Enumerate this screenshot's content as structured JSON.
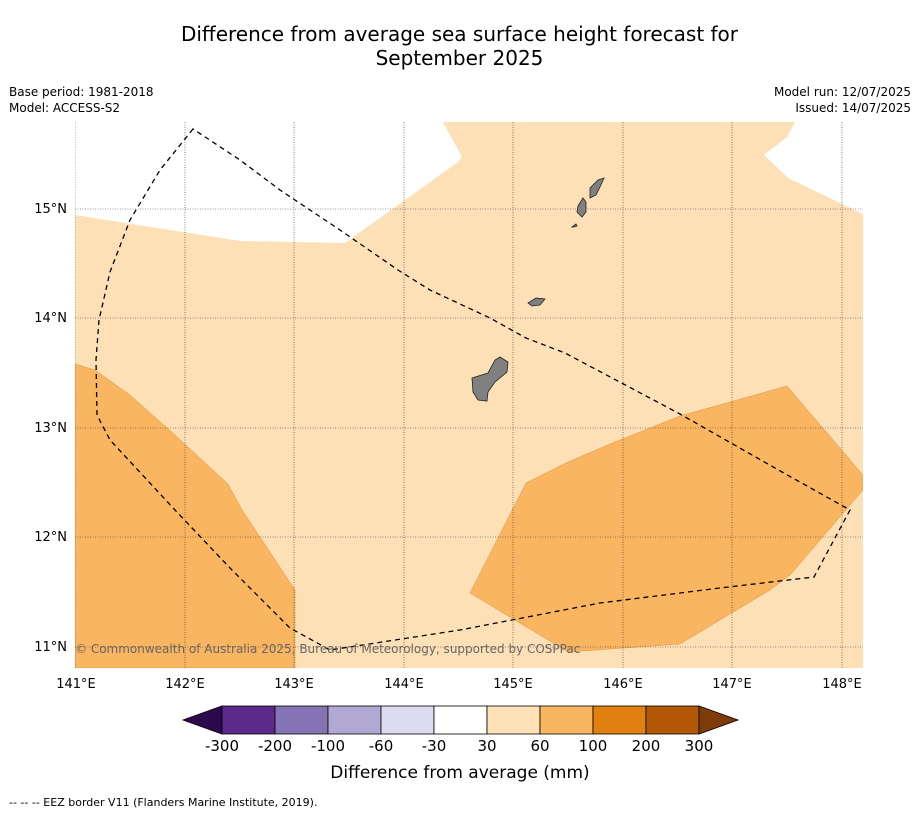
{
  "title_line1": "Difference from average sea surface height forecast for",
  "title_line2": "September 2025",
  "base_period": "Base period: 1981-2018",
  "model": "Model: ACCESS-S2",
  "model_run": "Model run: 12/07/2025",
  "issued": "Issued: 14/07/2025",
  "copyright": "© Commonwealth of Australia 2025, Bureau of Meteorology, supported by COSPPac",
  "footer": "--  --  -- EEZ border V11 (Flanders Marine Institute, 2019).",
  "lon_ticks": [
    "141°E",
    "142°E",
    "143°E",
    "144°E",
    "145°E",
    "146°E",
    "147°E",
    "148°E"
  ],
  "lat_ticks": [
    "15°N",
    "14°N",
    "13°N",
    "12°N",
    "11°N"
  ],
  "colorbar": {
    "title": "Difference from average (mm)",
    "labels": [
      "-300",
      "-200",
      "-100",
      "-60",
      "-30",
      "30",
      "60",
      "100",
      "200",
      "300"
    ],
    "colors": [
      "#2d0a4e",
      "#5b2a8c",
      "#8574b4",
      "#b1a9d3",
      "#dcdbef",
      "#ffffff",
      "#fde0b6",
      "#f9b560",
      "#e08010",
      "#b35806",
      "#7f3b08"
    ]
  }
}
